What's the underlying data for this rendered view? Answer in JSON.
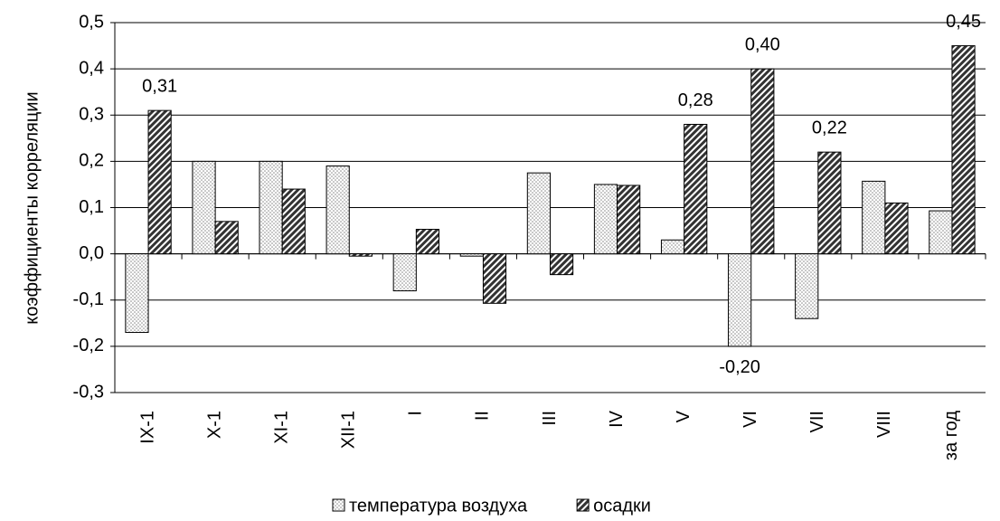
{
  "chart_data": {
    "type": "bar",
    "y_label": "коэффициенты корреляции",
    "categories": [
      "IX-1",
      "X-1",
      "XI-1",
      "XII-1",
      "I",
      "II",
      "III",
      "IV",
      "V",
      "VI",
      "VII",
      "VIII",
      "за год"
    ],
    "series": [
      {
        "name": "температура воздуха",
        "color": "#e6e6e6",
        "pattern": "dots",
        "values": [
          -0.17,
          0.2,
          0.2,
          0.19,
          -0.08,
          -0.005,
          0.175,
          0.15,
          0.03,
          -0.2,
          -0.14,
          0.157,
          0.093
        ],
        "value_labels": [
          null,
          null,
          null,
          null,
          null,
          null,
          null,
          null,
          null,
          "-0,20",
          null,
          null,
          null
        ]
      },
      {
        "name": "осадки",
        "color": "#333333",
        "pattern": "hatch",
        "values": [
          0.31,
          0.07,
          0.14,
          -0.005,
          0.053,
          -0.107,
          -0.045,
          0.148,
          0.28,
          0.4,
          0.22,
          0.11,
          0.45
        ],
        "value_labels": [
          "0,31",
          null,
          null,
          null,
          null,
          null,
          null,
          null,
          "0,28",
          "0,40",
          "0,22",
          null,
          "0,45"
        ]
      }
    ],
    "ylim": [
      -0.3,
      0.5
    ],
    "yticks": [
      {
        "value": -0.3,
        "label": "-0,3"
      },
      {
        "value": -0.2,
        "label": "-0,2"
      },
      {
        "value": -0.1,
        "label": "-0,1"
      },
      {
        "value": 0,
        "label": "0,0"
      },
      {
        "value": 0.1,
        "label": "0,1"
      },
      {
        "value": 0.2,
        "label": "0,2"
      },
      {
        "value": 0.3,
        "label": "0,3"
      },
      {
        "value": 0.4,
        "label": "0,4"
      },
      {
        "value": 0.5,
        "label": "0,5"
      }
    ],
    "grid": true,
    "legend": "bottom"
  }
}
